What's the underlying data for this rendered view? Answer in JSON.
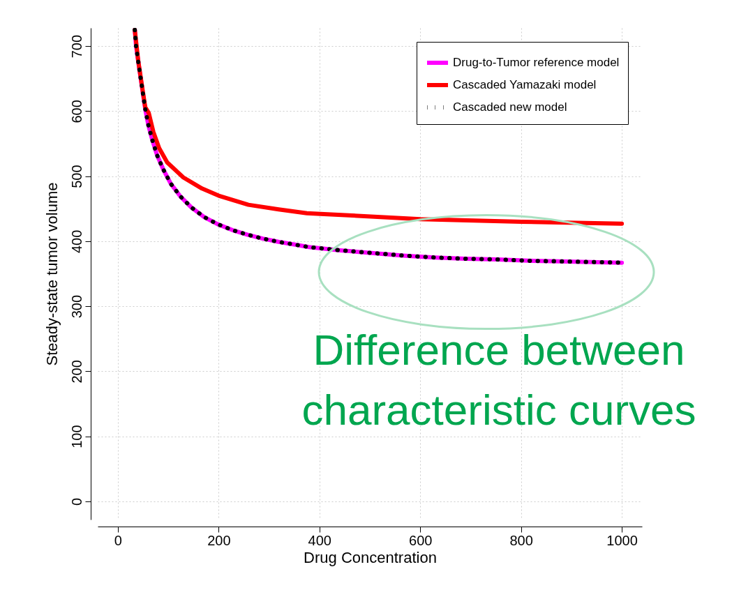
{
  "chart_data": {
    "type": "line",
    "xlabel": "Drug Concentration",
    "ylabel": "Steady-state tumor volume",
    "xlim": [
      -40,
      1040
    ],
    "ylim": [
      -28,
      728
    ],
    "xticks": [
      0,
      200,
      400,
      600,
      800,
      {
        "value": 1000,
        "label": "1000"
      }
    ],
    "yticks": [
      0,
      100,
      200,
      300,
      400,
      500,
      600,
      700
    ],
    "grid": true,
    "legend": "top right",
    "annotations": [
      "Difference between characteristic curves"
    ],
    "series": [
      {
        "name": "Drug-to-Tumor reference model",
        "color": "#ff00ff",
        "line_style": "solid",
        "x": [
          33.6,
          36,
          40.5,
          45,
          49.8,
          54.4,
          60.4,
          68.2,
          78,
          90.4,
          105.4,
          124,
          145.8,
          171.5,
          198.6,
          227.8,
          257.5,
          287.5,
          318.8,
          349.7,
          379,
          441,
          503,
          565.6,
          628,
          690,
          752,
          814,
          876,
          1000
        ],
        "values": [
          725,
          701,
          676,
          652,
          627,
          603,
          579,
          556,
          532,
          510,
          488,
          469,
          452,
          437,
          426,
          417,
          410,
          404,
          399,
          395,
          391,
          386,
          382,
          378,
          375,
          373,
          372,
          370,
          369,
          367
        ]
      },
      {
        "name": "Cascaded Yamazaki model",
        "color": "#ff0000",
        "line_style": "solid",
        "x": [
          33.6,
          40.5,
          49.8,
          54.4,
          61.4,
          70.5,
          82,
          98,
          130,
          167,
          200,
          259,
          319,
          375,
          402,
          600,
          801,
          1000
        ],
        "values": [
          725,
          677,
          629,
          606,
          597,
          568,
          543,
          521,
          498,
          481,
          470,
          456,
          449,
          443,
          442,
          434,
          430,
          427
        ]
      },
      {
        "name": "Cascaded new model",
        "color": "#000000",
        "line_style": "dotted",
        "x": [
          33.6,
          36,
          40.5,
          45,
          49.8,
          54.4,
          60.4,
          68.2,
          78,
          90.4,
          105.4,
          124,
          145.8,
          171.5,
          198.6,
          227.8,
          257.5,
          287.5,
          318.8,
          349.7,
          379,
          441,
          503,
          565.6,
          628,
          690,
          752,
          814,
          876,
          1000
        ],
        "values": [
          725,
          701,
          676,
          652,
          627,
          603,
          579,
          556,
          532,
          510,
          488,
          469,
          452,
          437,
          426,
          417,
          410,
          404,
          399,
          395,
          391,
          386,
          382,
          378,
          375,
          373,
          372,
          370,
          369,
          367
        ]
      }
    ]
  }
}
